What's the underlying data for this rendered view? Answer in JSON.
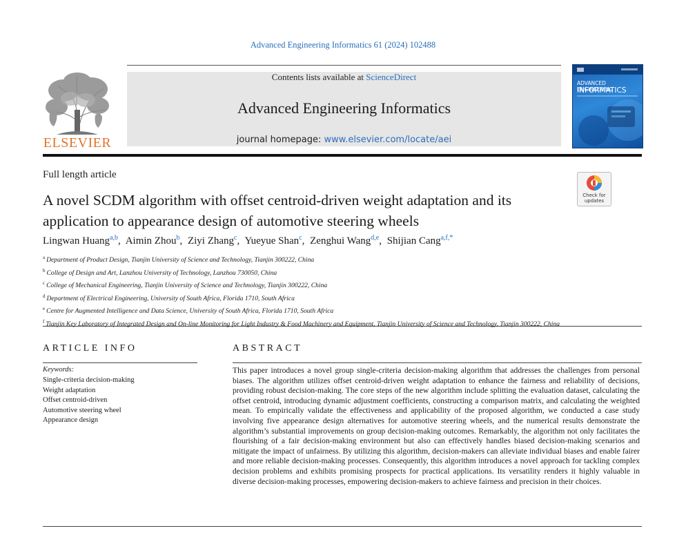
{
  "journal_citation": "Advanced Engineering Informatics 61 (2024) 102488",
  "banner": {
    "contents_prefix": "Contents lists available at ",
    "contents_link": "ScienceDirect",
    "journal_title": "Advanced Engineering Informatics",
    "homepage_prefix": "journal homepage: ",
    "homepage_link": "www.elsevier.com/locate/aei"
  },
  "publisher_logo_text": "ELSEVIER",
  "cover": {
    "line1": "ADVANCED ENGINEERING",
    "line2": "INFORMATICS"
  },
  "check_updates": {
    "line1": "Check for",
    "line2": "updates"
  },
  "article_type": "Full length article",
  "title": "A novel SCDM algorithm with offset centroid-driven weight adaptation and its application to appearance design of automotive steering wheels",
  "authors": [
    {
      "name": "Lingwan Huang",
      "sup": "a,b"
    },
    {
      "name": "Aimin Zhou",
      "sup": "b"
    },
    {
      "name": "Ziyi Zhang",
      "sup": "c"
    },
    {
      "name": "Yueyue Shan",
      "sup": "c"
    },
    {
      "name": "Zenghui Wang",
      "sup": "d,e"
    },
    {
      "name": "Shijian Cang",
      "sup": "a,f,*"
    }
  ],
  "affiliations": [
    {
      "key": "a",
      "text": "Department of Product Design, Tianjin University of Science and Technology, Tianjin 300222, China"
    },
    {
      "key": "b",
      "text": "College of Design and Art, Lanzhou University of Technology, Lanzhou 730050, China"
    },
    {
      "key": "c",
      "text": "College of Mechanical Engineering, Tianjin University of Science and Technology, Tianjin 300222, China"
    },
    {
      "key": "d",
      "text": "Department of Electrical Engineering, University of South Africa, Florida 1710, South Africa"
    },
    {
      "key": "e",
      "text": "Centre for Augmented Intelligence and Data Science, University of South Africa, Florida 1710, South Africa"
    },
    {
      "key": "f",
      "text": "Tianjin Key Laboratory of Integrated Design and On-line Monitoring for Light Industry & Food Machinery and Equipment, Tianjin University of Science and Technology, Tianjin 300222, China"
    }
  ],
  "article_info": {
    "heading": "ARTICLE INFO",
    "keywords_label": "Keywords:",
    "keywords": [
      "Single-criteria decision-making",
      "Weight adaptation",
      "Offset centroid-driven",
      "Automotive steering wheel",
      "Appearance design"
    ]
  },
  "abstract": {
    "heading": "ABSTRACT",
    "text": "This paper introduces a novel group single-criteria decision-making algorithm that addresses the challenges from personal biases. The algorithm utilizes offset centroid-driven weight adaptation to enhance the fairness and reliability of decisions, providing robust decision-making. The core steps of the new algorithm include splitting the evaluation dataset, calculating the offset centroid, introducing dynamic adjustment coefficients, constructing a comparison matrix, and calculating the weighted mean. To empirically validate the effectiveness and applicability of the proposed algorithm, we conducted a case study involving five appearance design alternatives for automotive steering wheels, and the numerical results demonstrate the algorithm’s substantial improvements on group decision-making outcomes. Remarkably, the algorithm not only facilitates the flourishing of a fair decision-making environment but also can effectively handles biased decision-making scenarios and mitigate the impact of unfairness. By utilizing this algorithm, decision-makers can alleviate individual biases and enable fairer and more reliable decision-making processes. Consequently, this algorithm introduces a novel approach for tackling complex decision problems and exhibits promising prospects for practical applications. Its versatility renders it highly valuable in diverse decision-making processes, empowering decision-makers to achieve fairness and precision in their choices."
  }
}
